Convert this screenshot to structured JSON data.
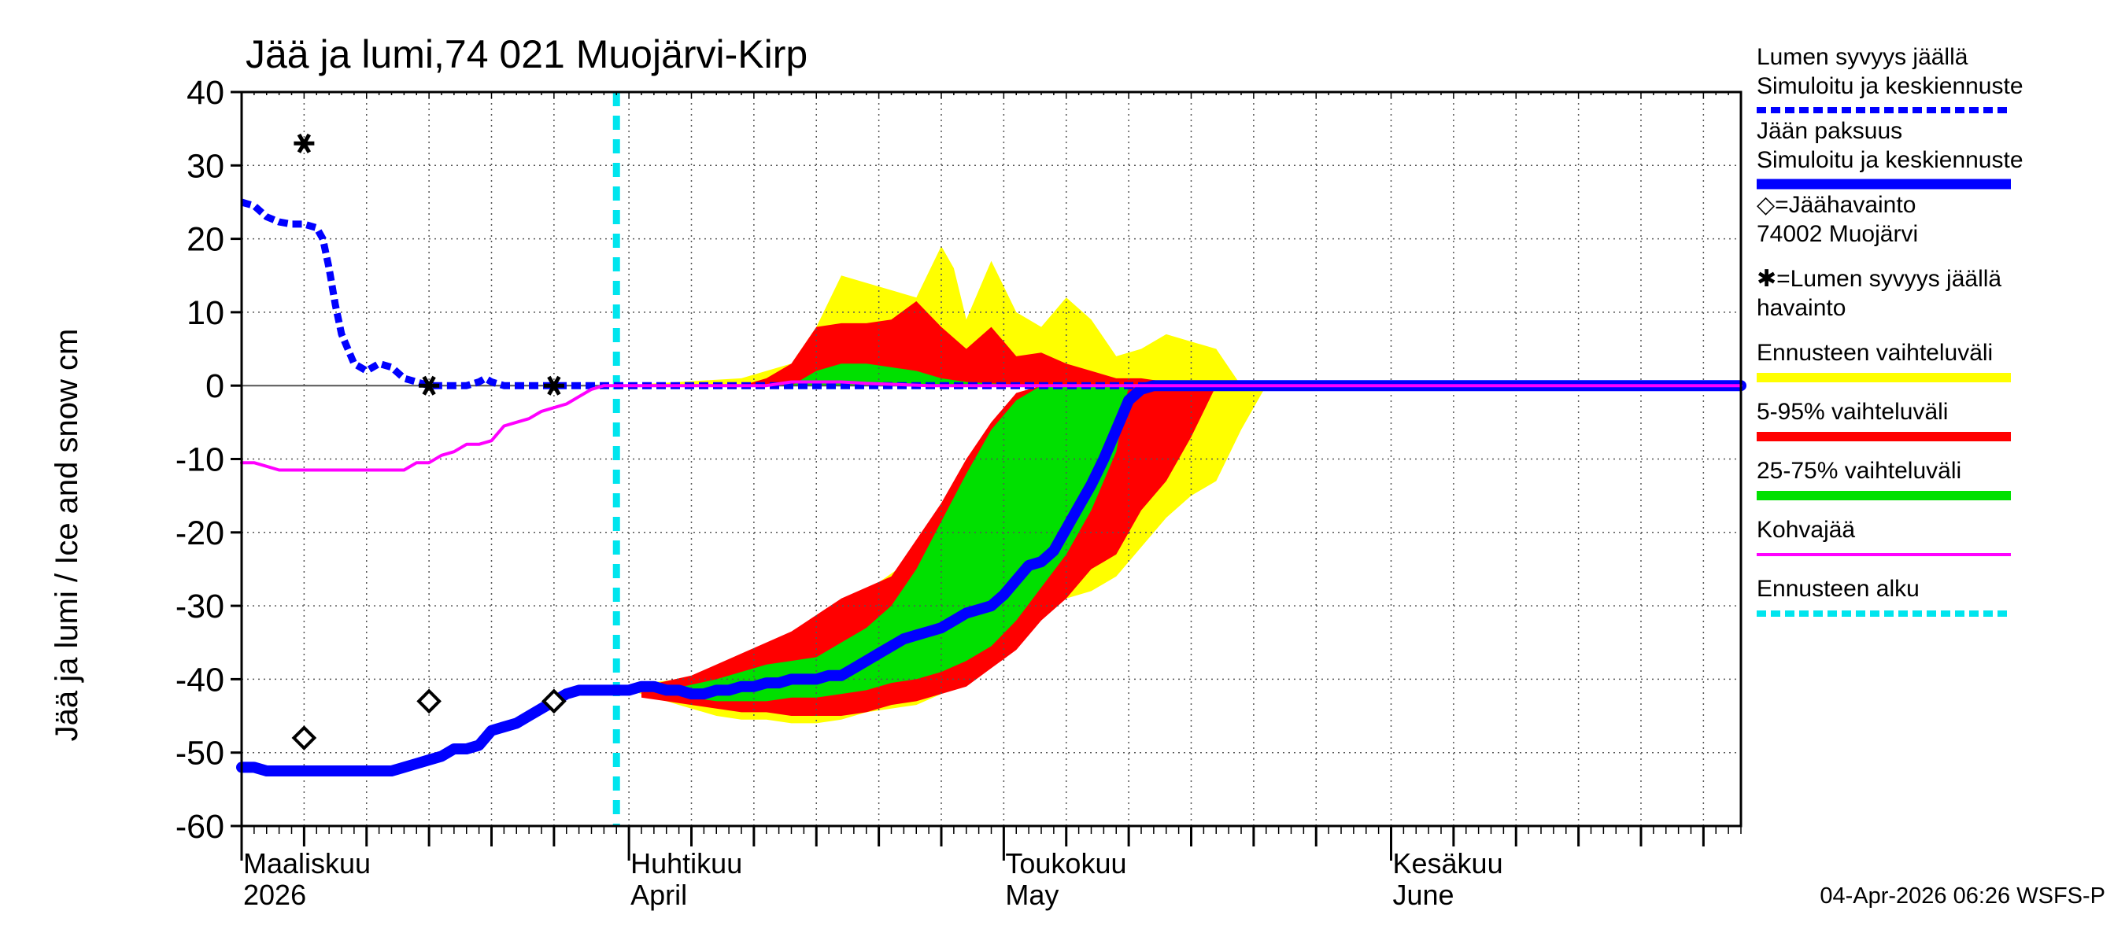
{
  "chart_data": {
    "type": "area",
    "title": "Jää ja lumi,74 021 Muojärvi-Kirp",
    "ylabel": "Jää ja lumi / Ice and snow    cm",
    "xlabel": "",
    "ylim": [
      -60,
      40
    ],
    "yticks": [
      40,
      30,
      20,
      10,
      0,
      -10,
      -20,
      -30,
      -40,
      -50,
      -60
    ],
    "x_unit": "day index from 1 Mar 2026",
    "xlim": [
      0,
      120
    ],
    "x_month_starts": [
      0,
      31,
      61,
      92
    ],
    "x_week_ticks": [
      0,
      5,
      10,
      15,
      20,
      25,
      31,
      36,
      41,
      46,
      51,
      56,
      61,
      66,
      71,
      76,
      81,
      86,
      92,
      97,
      102,
      107,
      112,
      117
    ],
    "x_labels": [
      {
        "day": 0,
        "line1": "Maaliskuu",
        "line2": "2026"
      },
      {
        "day": 31,
        "line1": "Huhtikuu",
        "line2": "April"
      },
      {
        "day": 61,
        "line1": "Toukokuu",
        "line2": "May"
      },
      {
        "day": 92,
        "line1": "Kesäkuu",
        "line2": "June"
      }
    ],
    "forecast_start_day": 30,
    "series": [
      {
        "name": "Lumen syvyys jäällä Simuloitu ja keskiennuste",
        "color": "#0000ff",
        "style": "dashed",
        "x": [
          0,
          1,
          2,
          3,
          4,
          5,
          6,
          6.5,
          7,
          7.5,
          8,
          9,
          10,
          11,
          12,
          13,
          14,
          15,
          16,
          17,
          18,
          19,
          19.5,
          20,
          21,
          22,
          23,
          24,
          25,
          26,
          27,
          28,
          29,
          30,
          31,
          33,
          35,
          37,
          40,
          45,
          50,
          60,
          70,
          80,
          90,
          100,
          110,
          120
        ],
        "y": [
          25,
          24.5,
          23,
          22.3,
          22,
          22,
          21.5,
          20,
          16,
          11,
          7,
          3,
          2,
          3,
          2.5,
          1,
          0.5,
          0,
          0,
          0,
          0,
          0.5,
          1,
          0.5,
          0,
          0,
          0,
          0,
          0,
          0,
          0,
          0,
          0,
          0,
          0,
          0,
          0,
          0,
          0,
          0,
          0,
          0,
          0,
          0,
          0,
          0,
          0,
          0
        ]
      },
      {
        "name": "Jään paksuus Simuloitu ja keskiennuste",
        "color": "#0000ff",
        "style": "solid",
        "x": [
          0,
          1,
          2,
          3,
          4,
          5,
          6,
          7,
          8,
          9,
          10,
          11,
          12,
          13,
          14,
          15,
          16,
          17,
          18,
          19,
          20,
          21,
          22,
          23,
          24,
          25,
          26,
          27,
          28,
          29,
          30,
          31,
          32,
          33,
          34,
          35,
          36,
          37,
          38,
          39,
          40,
          41,
          42,
          43,
          44,
          45,
          46,
          47,
          48,
          49,
          50,
          51,
          52,
          53,
          54,
          55,
          56,
          57,
          58,
          59,
          60,
          61,
          62,
          63,
          64,
          65,
          66,
          67,
          68,
          69,
          70,
          71,
          72,
          73,
          120
        ],
        "y": [
          -52,
          -52,
          -52.5,
          -52.5,
          -52.5,
          -52.5,
          -52.5,
          -52.5,
          -52.5,
          -52.5,
          -52.5,
          -52.5,
          -52.5,
          -52,
          -51.5,
          -51,
          -50.5,
          -49.5,
          -49.5,
          -49,
          -47,
          -46.5,
          -46,
          -45,
          -44,
          -43,
          -42,
          -41.5,
          -41.5,
          -41.5,
          -41.5,
          -41.5,
          -41,
          -41,
          -41.5,
          -41.5,
          -42,
          -42,
          -41.5,
          -41.5,
          -41,
          -41,
          -40.5,
          -40.5,
          -40,
          -40,
          -40,
          -39.5,
          -39.5,
          -38.5,
          -37.5,
          -36.5,
          -35.5,
          -34.5,
          -34,
          -33.5,
          -33,
          -32,
          -31,
          -30.5,
          -30,
          -28.5,
          -26.5,
          -24.5,
          -24,
          -22.5,
          -19.5,
          -16.5,
          -13.5,
          -10,
          -6,
          -2,
          -0.5,
          0,
          0
        ]
      },
      {
        "name": "Kohvajää",
        "color": "#ff00ff",
        "style": "solid",
        "x": [
          0,
          1,
          2,
          3,
          4,
          5,
          6,
          7,
          8,
          9,
          10,
          11,
          12,
          13,
          14,
          15,
          16,
          17,
          18,
          19,
          20,
          21,
          22,
          23,
          24,
          25,
          26,
          27,
          28,
          29,
          30,
          35,
          40,
          42,
          44,
          46,
          48,
          50,
          55,
          60,
          65,
          70,
          120
        ],
        "y": [
          -10.5,
          -10.5,
          -11,
          -11.5,
          -11.5,
          -11.5,
          -11.5,
          -11.5,
          -11.5,
          -11.5,
          -11.5,
          -11.5,
          -11.5,
          -11.5,
          -10.5,
          -10.5,
          -9.5,
          -9,
          -8,
          -8,
          -7.5,
          -5.5,
          -5,
          -4.5,
          -3.5,
          -3,
          -2.5,
          -1.5,
          -0.5,
          0,
          0,
          0,
          0,
          0,
          0.5,
          0.5,
          0.5,
          0.3,
          0,
          0,
          0,
          0,
          0
        ]
      }
    ],
    "bands": [
      {
        "name": "Ennusteen vaihteluväli",
        "color": "#ffff00",
        "upper": {
          "x": [
            30,
            40,
            42,
            44,
            46,
            48,
            50,
            52,
            54,
            56,
            57,
            58,
            60,
            62,
            64,
            66,
            68,
            70,
            72,
            74,
            76,
            78,
            80,
            90
          ],
          "y": [
            0,
            1,
            2,
            3,
            8,
            15,
            14,
            13,
            12,
            19,
            16,
            9,
            17,
            10,
            8,
            12,
            9,
            4,
            5,
            7,
            6,
            5,
            0,
            0
          ]
        },
        "lower": {
          "x": [
            30,
            32,
            34,
            36,
            38,
            40,
            42,
            44,
            46,
            48,
            50,
            52,
            54,
            56,
            58,
            60,
            62,
            64,
            66,
            68,
            70,
            72,
            74,
            76,
            78,
            80,
            82
          ],
          "y": [
            -41,
            -42,
            -43,
            -44,
            -45,
            -45.5,
            -45.5,
            -46,
            -46,
            -45.5,
            -44.5,
            -44,
            -43.5,
            -42,
            -39,
            -36,
            -34,
            -31,
            -29,
            -28,
            -26,
            -22,
            -18,
            -15,
            -13,
            -6,
            0
          ]
        },
        "ice_region_top": {
          "x": [
            30,
            35,
            40,
            45,
            50,
            55,
            58,
            60,
            62,
            64,
            66,
            68,
            70
          ],
          "y": [
            -41,
            -40,
            -38,
            -33,
            -28,
            -22,
            -14,
            -8,
            -4,
            0,
            0,
            0,
            0
          ]
        }
      },
      {
        "name": "5-95% vaihteluväli",
        "color": "#ff0000",
        "upper": {
          "x": [
            40,
            42,
            44,
            46,
            48,
            50,
            52,
            54,
            56,
            58,
            60,
            62,
            64,
            66,
            68,
            70,
            72,
            74,
            76
          ],
          "y": [
            0,
            1,
            3,
            8,
            8.5,
            8.5,
            9,
            11.5,
            8,
            5,
            8,
            4,
            4.5,
            3,
            2,
            1,
            1,
            0.5,
            0
          ]
        },
        "lower": {
          "x": [
            30,
            32,
            34,
            36,
            38,
            40,
            42,
            44,
            46,
            48,
            50,
            52,
            54,
            56,
            58,
            60,
            62,
            64,
            66,
            68,
            70,
            72,
            74,
            76,
            78
          ],
          "y": [
            -41.5,
            -42.5,
            -43,
            -43.5,
            -44,
            -44.5,
            -44.5,
            -45,
            -45,
            -45,
            -44.5,
            -43.5,
            -43,
            -42,
            -41,
            -38.5,
            -36,
            -32,
            -29,
            -25,
            -23,
            -17,
            -13,
            -7,
            0
          ]
        },
        "ice_region_top": {
          "x": [
            32,
            36,
            40,
            44,
            48,
            52,
            56,
            58,
            60,
            62,
            64,
            66,
            68
          ],
          "y": [
            -41,
            -39.5,
            -36.5,
            -33.5,
            -29,
            -26,
            -16,
            -10,
            -5,
            -1,
            0,
            0,
            0
          ]
        }
      },
      {
        "name": "25-75% vaihteluväli",
        "color": "#00e000",
        "upper": {
          "x": [
            44,
            46,
            48,
            50,
            52,
            54,
            56,
            58,
            60,
            62,
            64,
            66
          ],
          "y": [
            0,
            2,
            3,
            3,
            2.5,
            2,
            1,
            0.5,
            0.3,
            0.2,
            0.1,
            0
          ]
        },
        "lower": {
          "x": [
            34,
            36,
            38,
            40,
            42,
            44,
            46,
            48,
            50,
            52,
            54,
            56,
            58,
            60,
            62,
            64,
            66,
            68,
            70,
            71
          ],
          "y": [
            -42,
            -42.5,
            -43,
            -43,
            -43,
            -42.5,
            -42.5,
            -42,
            -41.5,
            -40.5,
            -40,
            -39,
            -37.5,
            -35.5,
            -32,
            -27.5,
            -23,
            -17,
            -9,
            0
          ]
        },
        "ice_region_top": {
          "x": [
            34,
            38,
            42,
            46,
            50,
            52,
            54,
            56,
            58,
            60,
            62,
            64,
            66
          ],
          "y": [
            -41.5,
            -40,
            -38,
            -37,
            -33,
            -30,
            -25,
            -18.5,
            -12,
            -6,
            -2,
            0,
            0
          ]
        }
      }
    ],
    "observations": [
      {
        "name": "Jäähavainto",
        "marker": "diamond",
        "points": [
          {
            "x": 5,
            "y": -48
          },
          {
            "x": 15,
            "y": -43
          },
          {
            "x": 25,
            "y": -43
          }
        ]
      },
      {
        "name": "Lumen syvyys jäällä havainto",
        "marker": "star",
        "points": [
          {
            "x": 5,
            "y": 33
          },
          {
            "x": 15,
            "y": 0
          },
          {
            "x": 25,
            "y": 0
          }
        ]
      }
    ],
    "legend": [
      {
        "line1": "Lumen syvyys jäällä",
        "line2": "Simuloitu ja keskiennuste",
        "color": "#0000ff",
        "style": "dashed"
      },
      {
        "line1": "Jään paksuus",
        "line2": "Simuloitu ja keskiennuste",
        "color": "#0000ff",
        "style": "thick"
      },
      {
        "line1": "◇=Jäähavainto",
        "line2": "74002 Muojärvi",
        "color": "#000000",
        "style": "none"
      },
      {
        "line1": "✱=Lumen syvyys jäällä",
        "line2": "havainto",
        "color": "#000000",
        "style": "none"
      },
      {
        "line1": "Ennusteen vaihteluväli",
        "line2": "",
        "color": "#ffff00",
        "style": "band"
      },
      {
        "line1": "5-95% vaihteluväli",
        "line2": "",
        "color": "#ff0000",
        "style": "band"
      },
      {
        "line1": "25-75% vaihteluväli",
        "line2": "",
        "color": "#00e000",
        "style": "band"
      },
      {
        "line1": "Kohvajää",
        "line2": "",
        "color": "#ff00ff",
        "style": "line"
      },
      {
        "line1": "Ennusteen alku",
        "line2": "",
        "color": "#00e5ee",
        "style": "dashed"
      }
    ],
    "legend_placement": "right",
    "timestamp": "04-Apr-2026 06:26 WSFS-P"
  }
}
